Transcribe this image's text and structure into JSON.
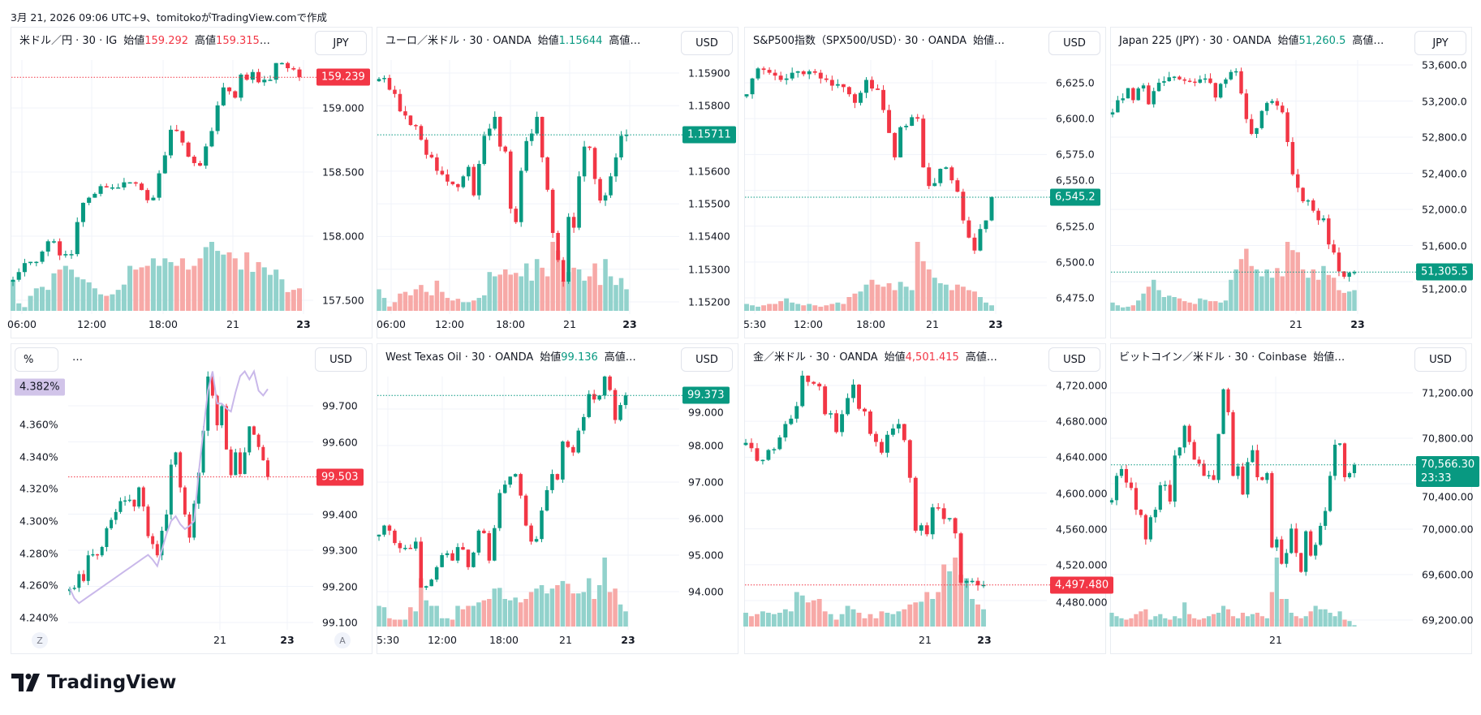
{
  "caption": "3月 21, 2026 09:06 UTC+9、tomitokoがTradingView.comで作成",
  "logo": {
    "text": "TradingView"
  },
  "colors": {
    "up": "#089981",
    "down": "#f23645",
    "up_volume": "#92d2cc",
    "down_volume": "#f7a9a7",
    "yield_line": "#c9b8ea",
    "yield_label_bg": "#d1c4e9"
  },
  "panels": [
    {
      "title": "米ドル／円 · 30 · IG",
      "open_label": "始値",
      "open": "159.292",
      "high_label": "高値",
      "high": "159.315",
      "ellipsis": "…",
      "value_color": "#f23645",
      "currency": "JPY"
    },
    {
      "title": "ユーロ／米ドル · 30 · OANDA",
      "open_label": "始値",
      "open": "1.15644",
      "high_label": "高値…",
      "value_color": "#089981",
      "currency": "USD"
    },
    {
      "title": "S&P500指数（SPX500/USD）· 30 · OANDA",
      "open_label": "始値…",
      "currency": "USD"
    },
    {
      "title": "Japan 225 (JPY) · 30 · OANDA",
      "open_label": "始値",
      "open": "51,260.5",
      "high_label": "高値…",
      "value_color": "#089981",
      "currency": "JPY"
    },
    {
      "title": "…",
      "left_currency": "%",
      "currency": "USD",
      "scale_buttons": [
        "Z",
        "A"
      ]
    },
    {
      "title": "West Texas Oil · 30 · OANDA",
      "open_label": "始値",
      "open": "99.136",
      "high_label": "高値…",
      "value_color": "#089981",
      "currency": "USD"
    },
    {
      "title": "金／米ドル · 30 · OANDA",
      "open_label": "始値",
      "open": "4,501.415",
      "high_label": "高値…",
      "value_color": "#f23645",
      "currency": "USD"
    },
    {
      "title": "ビットコイン／米ドル · 30 · Coinbase",
      "open_label": "始値…",
      "currency": "USD"
    }
  ],
  "chart_data": [
    {
      "type": "candlestick",
      "symbol": "米ドル／円",
      "yticks": [
        "159.000",
        "158.500",
        "158.000",
        "157.500"
      ],
      "ytick_values": [
        159.0,
        158.5,
        158.0,
        157.5
      ],
      "xticks": [
        "06:00",
        "12:00",
        "18:00",
        "21",
        "23"
      ],
      "last_price": "159.239",
      "last_price_value": 159.239,
      "last_price_color": "#f23645",
      "closes": [
        157.66,
        157.72,
        157.79,
        157.8,
        157.8,
        157.88,
        157.96,
        157.96,
        157.85,
        157.86,
        157.86,
        158.11,
        158.26,
        158.3,
        158.33,
        158.39,
        158.38,
        158.38,
        158.38,
        158.42,
        158.42,
        158.41,
        158.36,
        158.28,
        158.3,
        158.49,
        158.63,
        158.83,
        158.82,
        158.73,
        158.62,
        158.57,
        158.55,
        158.7,
        158.82,
        159.02,
        159.16,
        159.13,
        159.08,
        159.26,
        159.22,
        159.28,
        159.2,
        159.22,
        159.22,
        159.35,
        159.35,
        159.31,
        159.3,
        159.24
      ],
      "volumes": [
        40,
        10,
        5,
        20,
        30,
        32,
        28,
        50,
        55,
        60,
        55,
        45,
        42,
        38,
        30,
        22,
        20,
        22,
        28,
        35,
        60,
        55,
        58,
        60,
        70,
        60,
        70,
        65,
        60,
        70,
        55,
        60,
        70,
        85,
        92,
        80,
        75,
        78,
        70,
        55,
        78,
        52,
        65,
        58,
        48,
        55,
        42,
        25,
        28,
        30
      ]
    },
    {
      "type": "candlestick",
      "symbol": "ユーロ／米ドル",
      "yticks": [
        "1.15900",
        "1.15800",
        "1.15600",
        "1.15500",
        "1.15400",
        "1.15300",
        "1.15200"
      ],
      "ytick_values": [
        1.159,
        1.158,
        1.156,
        1.155,
        1.154,
        1.153,
        1.152
      ],
      "xticks": [
        "06:00",
        "12:00",
        "18:00",
        "21",
        "23"
      ],
      "last_price": "1.15711",
      "last_price_value": 1.15711,
      "last_price_color": "#089981",
      "closes": [
        1.15882,
        1.15885,
        1.15849,
        1.15836,
        1.15783,
        1.1577,
        1.15741,
        1.15738,
        1.15696,
        1.1565,
        1.15642,
        1.15601,
        1.1559,
        1.15568,
        1.1556,
        1.15551,
        1.15584,
        1.15613,
        1.15526,
        1.15622,
        1.15708,
        1.1573,
        1.15766,
        1.15675,
        1.1566,
        1.15485,
        1.15444,
        1.15601,
        1.15692,
        1.15715,
        1.15766,
        1.15642,
        1.15543,
        1.15411,
        1.15328,
        1.15262,
        1.1546,
        1.15427,
        1.15584,
        1.15675,
        1.15671,
        1.15576,
        1.1551,
        1.15526,
        1.15584,
        1.15642,
        1.15708,
        1.15711
      ],
      "volumes": [
        25,
        15,
        5,
        10,
        20,
        22,
        18,
        25,
        30,
        22,
        18,
        35,
        22,
        15,
        12,
        14,
        10,
        10,
        12,
        15,
        18,
        45,
        40,
        42,
        48,
        42,
        44,
        40,
        55,
        35,
        60,
        50,
        40,
        80,
        70,
        35,
        45,
        50,
        48,
        35,
        40,
        55,
        30,
        60,
        40,
        30,
        38,
        25
      ]
    },
    {
      "type": "candlestick",
      "symbol": "S&P500指数",
      "yticks": [
        "6,625.0",
        "6,600.0",
        "6,575.0",
        "6,550.0",
        "6,525.0",
        "6,500.0",
        "6,475.0"
      ],
      "ytick_values": [
        6625,
        6600,
        6575,
        6550,
        6525,
        6500,
        6475
      ],
      "xticks": [
        "5:30",
        "12:00",
        "18:00",
        "21",
        "23"
      ],
      "last_price": "6,545.2",
      "last_price_value": 6545.2,
      "last_price_color": "#089981",
      "closes": [
        6617,
        6628,
        6635,
        6634,
        6632,
        6630,
        6627,
        6628,
        6632,
        6633,
        6631,
        6633,
        6632,
        6628,
        6627,
        6623,
        6624,
        6622,
        6617,
        6611,
        6618,
        6627,
        6621,
        6620,
        6606,
        6590,
        6573,
        6594,
        6595,
        6601,
        6600,
        6566,
        6553,
        6555,
        6565,
        6566,
        6557,
        6549,
        6529,
        6517,
        6508,
        6523,
        6529,
        6545.2
      ],
      "volumes": [
        10,
        8,
        6,
        8,
        10,
        10,
        14,
        18,
        12,
        10,
        8,
        10,
        8,
        6,
        8,
        10,
        12,
        10,
        20,
        25,
        28,
        38,
        45,
        38,
        35,
        40,
        30,
        42,
        35,
        30,
        100,
        72,
        60,
        48,
        40,
        38,
        30,
        38,
        35,
        30,
        28,
        20,
        12,
        8
      ]
    },
    {
      "type": "candlestick",
      "symbol": "Japan 225",
      "yticks": [
        "53,600.0",
        "53,200.0",
        "52,800.0",
        "52,400.0",
        "52,000.0",
        "51,600.0",
        "51,200.0"
      ],
      "ytick_values": [
        53600,
        53200,
        52800,
        52400,
        52000,
        51600,
        51200
      ],
      "xticks": [
        "21",
        "23"
      ],
      "last_price": "51,305.5",
      "last_price_value": 51305.5,
      "last_price_color": "#089981",
      "closes": [
        53075,
        53209,
        53230,
        53343,
        53210,
        53340,
        53373,
        53164,
        53310,
        53403,
        53420,
        53463,
        53470,
        53440,
        53425,
        53415,
        53403,
        53440,
        53450,
        53400,
        53239,
        53390,
        53440,
        53522,
        53530,
        53284,
        53000,
        52836,
        52900,
        53090,
        53179,
        53200,
        53149,
        53075,
        52746,
        52388,
        52239,
        52090,
        52100,
        51985,
        51880,
        51900,
        51612,
        51522,
        51313,
        51254,
        51298,
        51305.5
      ],
      "volumes": [
        12,
        8,
        5,
        6,
        8,
        15,
        25,
        35,
        45,
        30,
        20,
        22,
        20,
        18,
        14,
        12,
        10,
        18,
        16,
        14,
        14,
        12,
        15,
        45,
        60,
        75,
        90,
        65,
        60,
        50,
        60,
        48,
        62,
        50,
        100,
        88,
        85,
        60,
        48,
        60,
        45,
        65,
        52,
        48,
        30,
        26,
        28,
        30
      ]
    },
    {
      "type": "candlestick",
      "symbol": "USD",
      "yticks": [
        "99.700",
        "99.600",
        "99.400",
        "99.300",
        "99.200",
        "99.100"
      ],
      "ytick_values": [
        99.7,
        99.6,
        99.4,
        99.3,
        99.2,
        99.1
      ],
      "left_yticks": [
        "4.360%",
        "4.340%",
        "4.320%",
        "4.300%",
        "4.280%",
        "4.260%",
        "4.240%"
      ],
      "left_ytick_values": [
        4.36,
        4.34,
        4.32,
        4.3,
        4.28,
        4.26,
        4.24
      ],
      "xticks": [
        "21",
        "23"
      ],
      "last_price": "99.503",
      "last_price_value": 99.503,
      "last_price_color": "#f23645",
      "left_last_price": "4.382%",
      "closes": [
        99.193,
        99.196,
        99.234,
        99.215,
        99.286,
        99.289,
        99.286,
        99.309,
        99.361,
        99.384,
        99.406,
        99.436,
        99.438,
        99.44,
        99.421,
        99.474,
        99.421,
        99.339,
        99.317,
        99.286,
        99.354,
        99.399,
        99.537,
        99.571,
        99.474,
        99.399,
        99.335,
        99.429,
        99.515,
        99.631,
        99.781,
        99.728,
        99.646,
        99.699,
        99.579,
        99.508,
        99.571,
        99.511,
        99.571,
        99.643,
        99.62,
        99.586,
        99.549,
        99.503
      ],
      "yield_line": [
        4.258,
        4.252,
        4.249,
        4.251,
        4.253,
        4.255,
        4.257,
        4.259,
        4.261,
        4.263,
        4.265,
        4.267,
        4.269,
        4.271,
        4.273,
        4.275,
        4.277,
        4.279,
        4.276,
        4.272,
        4.282,
        4.292,
        4.3,
        4.303,
        4.298,
        4.295,
        4.297,
        4.3,
        4.33,
        4.356,
        4.381,
        4.393,
        4.373,
        4.373,
        4.37,
        4.368,
        4.38,
        4.39,
        4.393,
        4.388,
        4.393,
        4.381,
        4.378,
        4.382
      ]
    },
    {
      "type": "candlestick",
      "symbol": "West Texas Oil",
      "yticks": [
        "99.000",
        "98.000",
        "97.000",
        "96.000",
        "95.000",
        "94.000"
      ],
      "ytick_values": [
        99,
        98,
        97,
        96,
        95,
        94
      ],
      "xticks": [
        "5:30",
        "12:00",
        "18:00",
        "21",
        "23"
      ],
      "last_price": "99.373",
      "last_price_value": 99.373,
      "last_price_color": "#089981",
      "closes": [
        95.56,
        95.81,
        95.67,
        95.33,
        95.19,
        95.2,
        95.18,
        95.37,
        94.11,
        94.15,
        94.33,
        94.67,
        95.0,
        95.05,
        94.85,
        95.22,
        95.15,
        94.67,
        95.07,
        95.67,
        95.6,
        94.85,
        95.74,
        96.7,
        96.93,
        97.15,
        97.22,
        96.63,
        95.81,
        95.37,
        95.44,
        96.22,
        96.78,
        97.22,
        97.07,
        98.11,
        97.96,
        97.81,
        98.41,
        98.78,
        99.41,
        99.26,
        99.37,
        99.89,
        99.52,
        98.7,
        99.11,
        99.373
      ],
      "volumes": [
        30,
        28,
        12,
        10,
        10,
        10,
        28,
        22,
        70,
        38,
        30,
        30,
        12,
        12,
        10,
        30,
        25,
        30,
        30,
        35,
        38,
        40,
        55,
        56,
        40,
        38,
        42,
        35,
        40,
        50,
        55,
        60,
        48,
        55,
        60,
        66,
        62,
        48,
        48,
        50,
        70,
        40,
        60,
        100,
        50,
        55,
        32,
        22
      ]
    },
    {
      "type": "candlestick",
      "symbol": "金／米ドル",
      "yticks": [
        "4,720.000",
        "4,680.000",
        "4,640.000",
        "4,600.000",
        "4,560.000",
        "4,520.000",
        "4,480.000"
      ],
      "ytick_values": [
        4720,
        4680,
        4640,
        4600,
        4560,
        4520,
        4480
      ],
      "xticks": [
        "21",
        "23"
      ],
      "last_price": "4,497.480",
      "last_price_value": 4497.48,
      "last_price_color": "#f23645",
      "closes": [
        4656,
        4650,
        4636,
        4637,
        4648,
        4649,
        4662,
        4677,
        4683,
        4697,
        4731,
        4724,
        4722,
        4719,
        4688,
        4689,
        4668,
        4688,
        4706,
        4721,
        4694,
        4691,
        4666,
        4657,
        4645,
        4665,
        4672,
        4677,
        4659,
        4617,
        4558,
        4564,
        4554,
        4584,
        4583,
        4571,
        4572,
        4555,
        4500,
        4502,
        4502,
        4497,
        4497.48
      ],
      "volumes": [
        20,
        15,
        18,
        22,
        20,
        18,
        20,
        25,
        22,
        50,
        45,
        35,
        38,
        40,
        22,
        18,
        10,
        18,
        30,
        25,
        20,
        12,
        18,
        12,
        22,
        20,
        18,
        22,
        25,
        32,
        35,
        36,
        50,
        40,
        50,
        90,
        80,
        100,
        75,
        70,
        40,
        32,
        25
      ]
    },
    {
      "type": "candlestick",
      "symbol": "ビットコイン／米ドル",
      "yticks": [
        "71,200.00",
        "70,800.00",
        "70,400.00",
        "70,000.00",
        "69,600.00",
        "69,200.00"
      ],
      "ytick_values": [
        71200,
        70800,
        70400,
        70000,
        69600,
        69200
      ],
      "xticks": [
        "21"
      ],
      "last_price": "70,566.30",
      "last_price_value": 70566.3,
      "last_price_color": "#089981",
      "countdown": "23:33",
      "closes": [
        70255,
        70469,
        70529,
        70410,
        70362,
        70171,
        70124,
        69910,
        70105,
        70171,
        70386,
        70390,
        70243,
        70648,
        70719,
        70910,
        70767,
        70612,
        70576,
        70469,
        70475,
        70433,
        70838,
        71231,
        71029,
        70469,
        70552,
        70305,
        70590,
        70695,
        70457,
        70433,
        70493,
        69839,
        69910,
        69695,
        69790,
        70005,
        69790,
        69624,
        69981,
        69767,
        69862,
        70029,
        70160,
        70469,
        70743,
        70755,
        70457,
        70493,
        70566.3
      ],
      "volumes": [
        20,
        15,
        12,
        10,
        12,
        18,
        22,
        25,
        10,
        15,
        18,
        12,
        10,
        15,
        12,
        35,
        18,
        12,
        10,
        12,
        15,
        18,
        20,
        30,
        25,
        15,
        12,
        20,
        15,
        18,
        20,
        15,
        12,
        50,
        100,
        40,
        40,
        20,
        15,
        12,
        15,
        22,
        30,
        25,
        25,
        20,
        15,
        22,
        10,
        8,
        2
      ]
    }
  ]
}
